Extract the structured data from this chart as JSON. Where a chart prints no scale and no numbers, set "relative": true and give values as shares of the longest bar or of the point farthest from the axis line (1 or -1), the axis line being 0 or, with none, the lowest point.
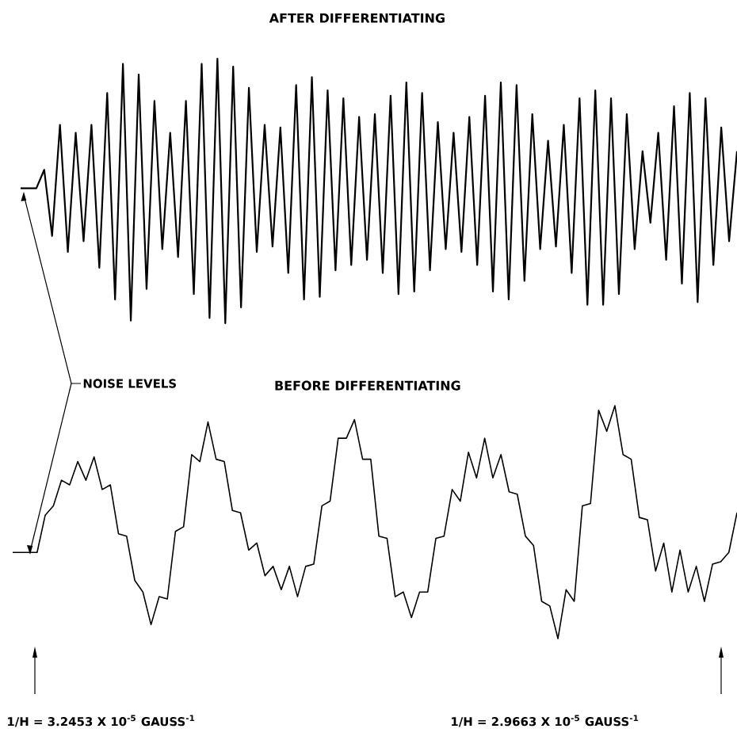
{
  "chart_data": [
    {
      "type": "line",
      "title": "AFTER DIFFERENTIATING",
      "relative": true,
      "categories": [
        null,
        null,
        null,
        null,
        null,
        null,
        null,
        null,
        null,
        null,
        null,
        null,
        null,
        null,
        null,
        null,
        null,
        null,
        null,
        null,
        null,
        null,
        null,
        null,
        null,
        null,
        null,
        null,
        null,
        null,
        null,
        null,
        null,
        null,
        null,
        null,
        null,
        null,
        null,
        null,
        null,
        null,
        null,
        null,
        null,
        null,
        null,
        null,
        null,
        null,
        null,
        null,
        null,
        null,
        null,
        null,
        null,
        null,
        null,
        null,
        null,
        null,
        null,
        null,
        null,
        null,
        null,
        null,
        null,
        null,
        null,
        null,
        null,
        null,
        null,
        null,
        null,
        null,
        null,
        null,
        null,
        null,
        null,
        null,
        null,
        null,
        null,
        null,
        null,
        null,
        null,
        null
      ],
      "series": [
        {
          "color": "#000000",
          "values": [
            0.51,
            0.51,
            0.51,
            0.58,
            0.33,
            0.75,
            0.27,
            0.72,
            0.31,
            0.75,
            0.21,
            0.87,
            0.09,
            0.98,
            0.01,
            0.94,
            0.13,
            0.84,
            0.28,
            0.72,
            0.25,
            0.84,
            0.11,
            0.98,
            0.02,
            1,
            0,
            0.97,
            0.06,
            0.89,
            0.27,
            0.75,
            0.29,
            0.74,
            0.19,
            0.9,
            0.09,
            0.93,
            0.1,
            0.88,
            0.2,
            0.85,
            0.22,
            0.78,
            0.24,
            0.79,
            0.19,
            0.86,
            0.11,
            0.91,
            0.12,
            0.87,
            0.2,
            0.76,
            0.28,
            0.72,
            0.27,
            0.78,
            0.22,
            0.86,
            0.12,
            0.91,
            0.09,
            0.9,
            0.16,
            0.79,
            0.28,
            0.69,
            0.29,
            0.75,
            0.19,
            0.85,
            0.07,
            0.88,
            0.07,
            0.85,
            0.11,
            0.79,
            0.28,
            0.65,
            0.38,
            0.72,
            0.24,
            0.82,
            0.15,
            0.87,
            0.08,
            0.85,
            0.22,
            0.74,
            0.31,
            0.65
          ]
        }
      ],
      "annotations": [
        "NOISE LEVELS"
      ]
    },
    {
      "type": "line",
      "title": "BEFORE DIFFERENTIATING",
      "relative": true,
      "categories": [
        null,
        null,
        null,
        null,
        null,
        null,
        null,
        null,
        null,
        null,
        null,
        null,
        null,
        null,
        null,
        null,
        null,
        null,
        null,
        null,
        null,
        null,
        null,
        null,
        null,
        null,
        null,
        null,
        null,
        null,
        null,
        null,
        null,
        null,
        null,
        null,
        null,
        null,
        null,
        null,
        null,
        null,
        null,
        null,
        null,
        null,
        null,
        null,
        null,
        null,
        null,
        null,
        null,
        null,
        null,
        null,
        null,
        null,
        null,
        null,
        null,
        null,
        null,
        null,
        null,
        null,
        null,
        null,
        null,
        null,
        null,
        null,
        null,
        null,
        null,
        null,
        null,
        null,
        null,
        null,
        null,
        null,
        null,
        null,
        null,
        null,
        null,
        null,
        null,
        null
      ],
      "series": [
        {
          "color": "#000000",
          "values": [
            0.37,
            0.37,
            0.37,
            0.37,
            0.53,
            0.57,
            0.68,
            0.66,
            0.76,
            0.68,
            0.78,
            0.64,
            0.66,
            0.45,
            0.44,
            0.25,
            0.2,
            0.06,
            0.18,
            0.17,
            0.46,
            0.48,
            0.79,
            0.76,
            0.93,
            0.77,
            0.76,
            0.55,
            0.54,
            0.38,
            0.41,
            0.27,
            0.31,
            0.21,
            0.31,
            0.18,
            0.31,
            0.32,
            0.57,
            0.59,
            0.86,
            0.86,
            0.94,
            0.77,
            0.77,
            0.44,
            0.43,
            0.18,
            0.2,
            0.09,
            0.2,
            0.2,
            0.43,
            0.44,
            0.64,
            0.59,
            0.8,
            0.69,
            0.86,
            0.69,
            0.79,
            0.63,
            0.62,
            0.44,
            0.4,
            0.16,
            0.14,
            0,
            0.21,
            0.16,
            0.57,
            0.58,
            0.98,
            0.89,
            1,
            0.79,
            0.77,
            0.52,
            0.51,
            0.29,
            0.41,
            0.2,
            0.38,
            0.2,
            0.31,
            0.16,
            0.32,
            0.33,
            0.37,
            0.54
          ]
        }
      ],
      "annotations": [
        "1/H = 3.2453 X 10$^{-5}$ GAUSS$^{-1}$",
        "1/H = 2.9663 X 10$^{-5}$ GAUSS$^{-1}$"
      ]
    }
  ]
}
